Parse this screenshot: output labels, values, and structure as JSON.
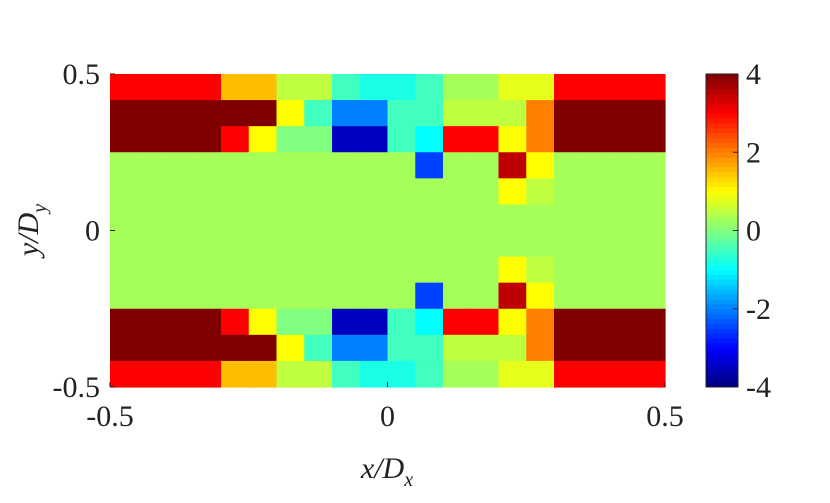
{
  "chart_data": {
    "type": "heatmap",
    "xlabel": "x/D",
    "xlabel_sub": "x",
    "ylabel": "y/D",
    "ylabel_sub": "y",
    "xlim": [
      -0.5,
      0.5
    ],
    "xticks": [
      -0.5,
      0,
      0.5
    ],
    "ylim": [
      -0.5,
      0.5
    ],
    "yticks": [
      -0.5,
      0,
      0.5
    ],
    "clim": [
      -4,
      4
    ],
    "cticks": [
      -4,
      -2,
      0,
      2,
      4
    ],
    "colormap": "jet",
    "z": [
      [
        3,
        3,
        3,
        3,
        1.5,
        1.5,
        0.5,
        0.5,
        -0.5,
        -0.8,
        -0.8,
        -0.5,
        0.3,
        0.3,
        0.8,
        0.8,
        3,
        3,
        3,
        3
      ],
      [
        4,
        4,
        4,
        4,
        4,
        4,
        1,
        -0.5,
        -2,
        -2,
        -0.5,
        -0.5,
        0.5,
        0.5,
        0.5,
        2,
        4,
        4,
        4,
        4
      ],
      [
        4,
        4,
        4,
        4,
        3,
        1,
        0,
        0,
        -3.5,
        -3.5,
        -0.5,
        -1,
        3,
        3,
        1,
        2,
        4,
        4,
        4,
        4
      ],
      [
        0.3,
        0.3,
        0.3,
        0.3,
        0.3,
        0.3,
        0.3,
        0.3,
        0.3,
        0.3,
        0.3,
        -2.5,
        0.3,
        0.3,
        3.5,
        1,
        0.3,
        0.3,
        0.3,
        0.3
      ],
      [
        0.3,
        0.3,
        0.3,
        0.3,
        0.3,
        0.3,
        0.3,
        0.3,
        0.3,
        0.3,
        0.3,
        0.3,
        0.3,
        0.3,
        1,
        0.5,
        0.3,
        0.3,
        0.3,
        0.3
      ],
      [
        0.3,
        0.3,
        0.3,
        0.3,
        0.3,
        0.3,
        0.3,
        0.3,
        0.3,
        0.3,
        0.3,
        0.3,
        0.3,
        0.3,
        0.3,
        0.3,
        0.3,
        0.3,
        0.3,
        0.3
      ],
      [
        0.3,
        0.3,
        0.3,
        0.3,
        0.3,
        0.3,
        0.3,
        0.3,
        0.3,
        0.3,
        0.3,
        0.3,
        0.3,
        0.3,
        0.3,
        0.3,
        0.3,
        0.3,
        0.3,
        0.3
      ],
      [
        0.3,
        0.3,
        0.3,
        0.3,
        0.3,
        0.3,
        0.3,
        0.3,
        0.3,
        0.3,
        0.3,
        0.3,
        0.3,
        0.3,
        1,
        0.5,
        0.3,
        0.3,
        0.3,
        0.3
      ],
      [
        0.3,
        0.3,
        0.3,
        0.3,
        0.3,
        0.3,
        0.3,
        0.3,
        0.3,
        0.3,
        0.3,
        -2.5,
        0.3,
        0.3,
        3.5,
        1,
        0.3,
        0.3,
        0.3,
        0.3
      ],
      [
        4,
        4,
        4,
        4,
        3,
        1,
        0,
        0,
        -3.5,
        -3.5,
        -0.5,
        -1,
        3,
        3,
        1,
        2,
        4,
        4,
        4,
        4
      ],
      [
        4,
        4,
        4,
        4,
        4,
        4,
        1,
        -0.5,
        -2,
        -2,
        -0.5,
        -0.5,
        0.5,
        0.5,
        0.5,
        2,
        4,
        4,
        4,
        4
      ],
      [
        3,
        3,
        3,
        3,
        1.5,
        1.5,
        0.5,
        0.5,
        -0.5,
        -0.8,
        -0.8,
        -0.5,
        0.3,
        0.3,
        0.8,
        0.8,
        3,
        3,
        3,
        3
      ]
    ]
  }
}
